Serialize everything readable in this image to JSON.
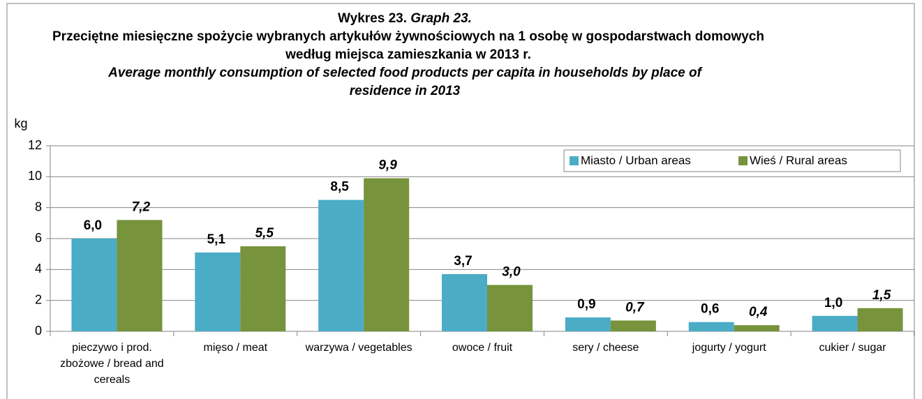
{
  "chart_data": {
    "type": "bar",
    "title": "Wykres 23.",
    "title_en": "Graph 23.",
    "subtitle": "Przeciętne miesięczne spożycie wybranych artykułów żywnościowych na 1 osobę w gospodarstwach domowych według miejsca zamieszkania w 2013 r.",
    "subtitle_en": "Average monthly consumption of selected food products per capita in households by place of residence in 2013",
    "y_label": "kg",
    "categories": [
      "pieczywo i prod. zbożowe / bread and cereals",
      "mięso / meat",
      "warzywa / vegetables",
      "owoce / fruit",
      "sery / cheese",
      "jogurty / yogurt",
      "cukier / sugar"
    ],
    "series": [
      {
        "name": "Miasto / Urban areas",
        "color": "#4bacc6",
        "values": [
          6.0,
          5.1,
          8.5,
          3.7,
          0.9,
          0.6,
          1.0
        ],
        "value_labels": [
          "6,0",
          "5,1",
          "8,5",
          "3,7",
          "0,9",
          "0,6",
          "1,0"
        ]
      },
      {
        "name": "Wieś / Rural areas",
        "color": "#77933c",
        "values": [
          7.2,
          5.5,
          9.9,
          3.0,
          0.7,
          0.4,
          1.5
        ],
        "value_labels": [
          "7,2",
          "5,5",
          "9,9",
          "3,0",
          "0,7",
          "0,4",
          "1,5"
        ]
      }
    ],
    "ylim": [
      0,
      12
    ],
    "yticks": [
      0,
      2,
      4,
      6,
      8,
      10,
      12
    ],
    "grid": true,
    "legend": "top-right"
  }
}
